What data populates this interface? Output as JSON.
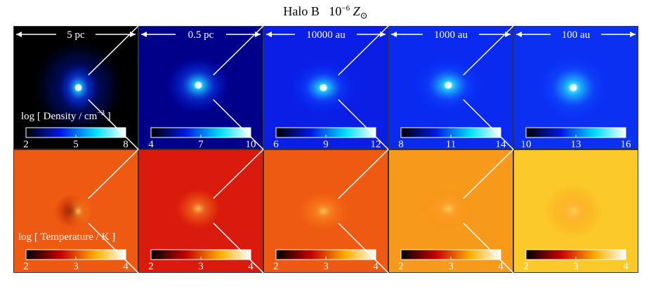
{
  "title": {
    "halo": "Halo B",
    "metallicity_base": "10",
    "metallicity_exponent": "−6",
    "metallicity_symbol": "Z",
    "metallicity_sub": "⊙"
  },
  "scale_labels": [
    "5 pc",
    "0.5 pc",
    "10000 au",
    "1000 au",
    "100 au"
  ],
  "rows": [
    {
      "name": "density",
      "label": "log [ Density / cm",
      "label_exponent": "−3",
      "label_suffix": " ]",
      "colormap": "blue",
      "ticks": [
        [
          "2",
          "5",
          "8"
        ],
        [
          "4",
          "7",
          "10"
        ],
        [
          "6",
          "9",
          "12"
        ],
        [
          "8",
          "11",
          "14"
        ],
        [
          "10",
          "13",
          "16"
        ]
      ]
    },
    {
      "name": "temperature",
      "label": "log [ Temperature / K ]",
      "colormap": "heat",
      "ticks": [
        [
          "2",
          "3",
          "4"
        ],
        [
          "2",
          "3",
          "4"
        ],
        [
          "2",
          "3",
          "4"
        ],
        [
          "2",
          "3",
          "4"
        ],
        [
          "2",
          "3",
          "4"
        ]
      ]
    }
  ],
  "colors": {
    "density_bg": [
      "#000000",
      "#00008a",
      "#0a1ee6",
      "#0a2af0",
      "#0c30f2"
    ],
    "temperature_bg": [
      "#ef5a12",
      "#d91a0c",
      "#ef5a12",
      "#f79a1c",
      "#fbca2a"
    ]
  }
}
